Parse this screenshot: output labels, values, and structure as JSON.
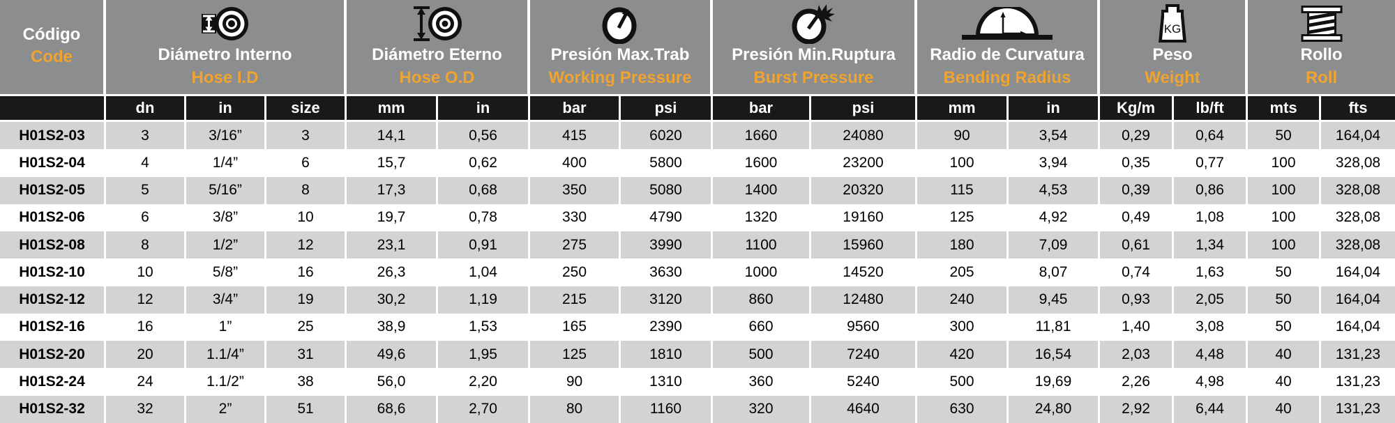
{
  "colors": {
    "header_bg": "#8b8d8f",
    "subheader_bg": "#191919",
    "accent_orange": "#f0a42f",
    "row_stripe": "#d2d3d5",
    "row_plain": "#ffffff",
    "text_dark": "#000000",
    "text_light": "#ffffff"
  },
  "table": {
    "groups": [
      {
        "es": "Código",
        "en": "Code",
        "icon": null,
        "cols": [
          ""
        ]
      },
      {
        "es": "Diámetro Interno",
        "en": "Hose I.D",
        "icon": "hose-id-icon",
        "cols": [
          "dn",
          "in",
          "size"
        ]
      },
      {
        "es": "Diámetro Eterno",
        "en": "Hose O.D",
        "icon": "hose-od-icon",
        "cols": [
          "mm",
          "in"
        ]
      },
      {
        "es": "Presión Max.Trab",
        "en": "Working Pressure",
        "icon": "working-pressure-icon",
        "cols": [
          "bar",
          "psi"
        ]
      },
      {
        "es": "Presión Min.Ruptura",
        "en": "Burst Pressure",
        "icon": "burst-pressure-icon",
        "cols": [
          "bar",
          "psi"
        ]
      },
      {
        "es": "Radio de Curvatura",
        "en": "Bending Radius",
        "icon": "bending-radius-icon",
        "cols": [
          "mm",
          "in"
        ]
      },
      {
        "es": "Peso",
        "en": "Weight",
        "icon": "weight-icon",
        "cols": [
          "Kg/m",
          "lb/ft"
        ]
      },
      {
        "es": "Rollo",
        "en": "Roll",
        "icon": "roll-icon",
        "cols": [
          "mts",
          "fts"
        ]
      }
    ],
    "rows": [
      [
        "H01S2-03",
        "3",
        "3/16”",
        "3",
        "14,1",
        "0,56",
        "415",
        "6020",
        "1660",
        "24080",
        "90",
        "3,54",
        "0,29",
        "0,64",
        "50",
        "164,04"
      ],
      [
        "H01S2-04",
        "4",
        "1/4”",
        "6",
        "15,7",
        "0,62",
        "400",
        "5800",
        "1600",
        "23200",
        "100",
        "3,94",
        "0,35",
        "0,77",
        "100",
        "328,08"
      ],
      [
        "H01S2-05",
        "5",
        "5/16”",
        "8",
        "17,3",
        "0,68",
        "350",
        "5080",
        "1400",
        "20320",
        "115",
        "4,53",
        "0,39",
        "0,86",
        "100",
        "328,08"
      ],
      [
        "H01S2-06",
        "6",
        "3/8”",
        "10",
        "19,7",
        "0,78",
        "330",
        "4790",
        "1320",
        "19160",
        "125",
        "4,92",
        "0,49",
        "1,08",
        "100",
        "328,08"
      ],
      [
        "H01S2-08",
        "8",
        "1/2”",
        "12",
        "23,1",
        "0,91",
        "275",
        "3990",
        "1100",
        "15960",
        "180",
        "7,09",
        "0,61",
        "1,34",
        "100",
        "328,08"
      ],
      [
        "H01S2-10",
        "10",
        "5/8”",
        "16",
        "26,3",
        "1,04",
        "250",
        "3630",
        "1000",
        "14520",
        "205",
        "8,07",
        "0,74",
        "1,63",
        "50",
        "164,04"
      ],
      [
        "H01S2-12",
        "12",
        "3/4”",
        "19",
        "30,2",
        "1,19",
        "215",
        "3120",
        "860",
        "12480",
        "240",
        "9,45",
        "0,93",
        "2,05",
        "50",
        "164,04"
      ],
      [
        "H01S2-16",
        "16",
        "1”",
        "25",
        "38,9",
        "1,53",
        "165",
        "2390",
        "660",
        "9560",
        "300",
        "11,81",
        "1,40",
        "3,08",
        "50",
        "164,04"
      ],
      [
        "H01S2-20",
        "20",
        "1.1/4”",
        "31",
        "49,6",
        "1,95",
        "125",
        "1810",
        "500",
        "7240",
        "420",
        "16,54",
        "2,03",
        "4,48",
        "40",
        "131,23"
      ],
      [
        "H01S2-24",
        "24",
        "1.1/2”",
        "38",
        "56,0",
        "2,20",
        "90",
        "1310",
        "360",
        "5240",
        "500",
        "19,69",
        "2,26",
        "4,98",
        "40",
        "131,23"
      ],
      [
        "H01S2-32",
        "32",
        "2”",
        "51",
        "68,6",
        "2,70",
        "80",
        "1160",
        "320",
        "4640",
        "630",
        "24,80",
        "2,92",
        "6,44",
        "40",
        "131,23"
      ]
    ]
  }
}
